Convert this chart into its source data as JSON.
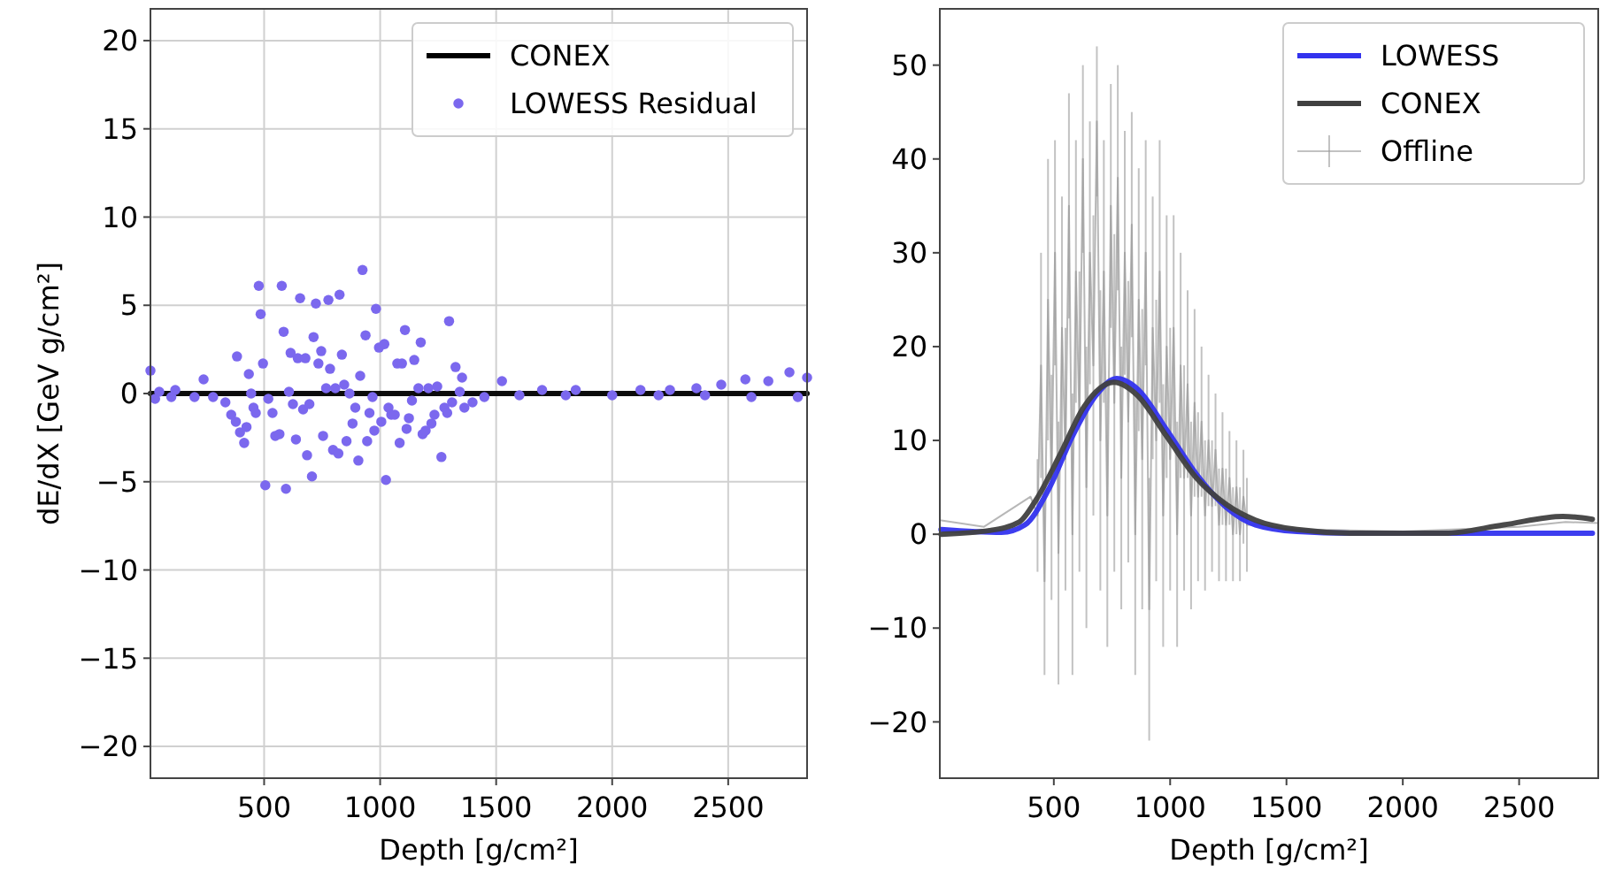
{
  "chart_data": [
    {
      "type": "line",
      "xlabel": "Depth [g/cm²]",
      "ylabel": "dE/dX [GeV g/cm²]",
      "xlim": [
        10,
        2840
      ],
      "ylim": [
        -21.8,
        21.8
      ],
      "xticks": [
        500,
        1000,
        1500,
        2000,
        2500
      ],
      "yticks": [
        -20,
        -15,
        -10,
        -5,
        0,
        5,
        10,
        15,
        20
      ],
      "grid": true,
      "legend": "top right",
      "series": [
        {
          "name": "CONEX",
          "color": "#000000",
          "x": [
            10,
            2840
          ],
          "values": [
            0,
            0
          ]
        },
        {
          "name": "LOWESS Residual",
          "type": "scatter",
          "marker": "circle",
          "color": "#7b68ee",
          "x": [
            10,
            30,
            48,
            100,
            117,
            200,
            239,
            280,
            333,
            358,
            378,
            383,
            396,
            414,
            424,
            434,
            444,
            454,
            464,
            477,
            485,
            495,
            505,
            518,
            536,
            548,
            566,
            576,
            584,
            594,
            607,
            614,
            624,
            637,
            645,
            655,
            668,
            678,
            685,
            695,
            706,
            713,
            723,
            734,
            746,
            754,
            767,
            777,
            784,
            797,
            807,
            820,
            825,
            835,
            845,
            855,
            868,
            881,
            893,
            906,
            914,
            924,
            937,
            944,
            954,
            967,
            975,
            982,
            995,
            1005,
            1018,
            1025,
            1036,
            1048,
            1063,
            1074,
            1084,
            1094,
            1107,
            1114,
            1124,
            1137,
            1147,
            1165,
            1175,
            1183,
            1196,
            1208,
            1221,
            1234,
            1246,
            1264,
            1277,
            1289,
            1297,
            1310,
            1325,
            1343,
            1353,
            1363,
            1398,
            1449,
            1525,
            1600,
            1698,
            1800,
            1843,
            2000,
            2122,
            2200,
            2249,
            2363,
            2400,
            2470,
            2574,
            2600,
            2673,
            2764,
            2800,
            2840
          ],
          "values": [
            1.3,
            -0.3,
            0.1,
            -0.2,
            0.2,
            -0.2,
            0.8,
            -0.2,
            -0.5,
            -1.2,
            -1.6,
            2.1,
            -2.2,
            -2.8,
            -1.9,
            1.1,
            0,
            -0.8,
            -1.1,
            6.1,
            4.5,
            1.7,
            -5.2,
            -0.3,
            -1.1,
            -2.4,
            -2.3,
            6.1,
            3.5,
            -5.4,
            0.1,
            2.3,
            -0.6,
            -2.6,
            2,
            5.4,
            -0.9,
            2,
            -3.5,
            -0.6,
            -4.7,
            3.2,
            5.1,
            1.7,
            2.4,
            -2.4,
            0.3,
            5.3,
            1.4,
            -3.2,
            0.3,
            -3.4,
            5.6,
            2.2,
            0.5,
            -2.7,
            0,
            -1.7,
            -0.8,
            -3.8,
            1,
            7,
            3.3,
            -2.7,
            -1.1,
            -0.2,
            -2.1,
            4.8,
            2.6,
            -1.6,
            2.8,
            -4.9,
            -0.8,
            -1.2,
            -1.2,
            1.7,
            -2.8,
            1.7,
            3.6,
            -2,
            -1.4,
            -0.4,
            1.9,
            0.3,
            2.9,
            -2.3,
            -2.1,
            0.3,
            -1.7,
            -1.2,
            0.4,
            -3.6,
            -0.8,
            -1.1,
            4.1,
            -0.5,
            1.5,
            0.1,
            0.9,
            -0.8,
            -0.5,
            -0.2,
            0.7,
            -0.1,
            0.2,
            -0.1,
            0.2,
            -0.1,
            0.2,
            -0.1,
            0.2,
            0.3,
            -0.1,
            0.5,
            0.8,
            -0.2,
            0.7,
            1.2,
            -0.2,
            0.9
          ]
        }
      ]
    },
    {
      "type": "line",
      "xlabel": "Depth [g/cm²]",
      "xlim": [
        10,
        2840
      ],
      "ylim": [
        -26,
        56
      ],
      "xticks": [
        500,
        1000,
        1500,
        2000,
        2500
      ],
      "yticks": [
        -20,
        -10,
        0,
        10,
        20,
        30,
        40,
        50
      ],
      "grid": false,
      "legend": "top right",
      "series": [
        {
          "name": "LOWESS",
          "color": "#3333ee",
          "x": [
            15,
            275,
            376,
            478,
            579,
            681,
            770,
            859,
            986,
            1113,
            1240,
            1367,
            1545,
            1799,
            2815
          ],
          "values": [
            0.5,
            0.2,
            1,
            4.8,
            10.4,
            14.8,
            16.6,
            15.5,
            11.1,
            6.4,
            2.9,
            1,
            0.3,
            0.1,
            0.1
          ]
        },
        {
          "name": "CONEX",
          "color": "#404040",
          "x": [
            15,
            224,
            351,
            427,
            529,
            630,
            757,
            859,
            986,
            1113,
            1240,
            1367,
            1545,
            1799,
            2180,
            2434,
            2688,
            2815
          ],
          "values": [
            0,
            0.4,
            1.3,
            3.8,
            8.6,
            13.6,
            16.2,
            14.8,
            10.4,
            6,
            3.2,
            1.5,
            0.5,
            0.1,
            0.1,
            1,
            1.9,
            1.6
          ]
        },
        {
          "name": "Offline",
          "color": "#999999",
          "x": [
            10,
            200,
            400,
            430,
            445,
            460,
            475,
            490,
            505,
            520,
            535,
            550,
            565,
            580,
            595,
            610,
            625,
            640,
            655,
            670,
            685,
            700,
            715,
            730,
            745,
            760,
            775,
            790,
            805,
            820,
            835,
            850,
            865,
            880,
            895,
            910,
            925,
            940,
            955,
            970,
            985,
            1000,
            1015,
            1030,
            1045,
            1060,
            1075,
            1090,
            1105,
            1120,
            1135,
            1150,
            1165,
            1180,
            1195,
            1210,
            1225,
            1240,
            1255,
            1270,
            1285,
            1300,
            1315,
            1330,
            1400,
            1600,
            2000,
            2500,
            2700,
            2840
          ],
          "values": [
            1.5,
            0.8,
            4,
            2,
            18,
            -5,
            25,
            5,
            30,
            -2,
            22,
            8,
            35,
            0,
            28,
            12,
            40,
            5,
            30,
            18,
            44,
            10,
            28,
            2,
            35,
            14,
            38,
            6,
            30,
            12,
            33,
            0,
            25,
            8,
            30,
            -8,
            22,
            10,
            28,
            2,
            20,
            8,
            22,
            0,
            18,
            6,
            16,
            2,
            14,
            4,
            12,
            2,
            10,
            3,
            9,
            1,
            7,
            1,
            6,
            0,
            5,
            0,
            4,
            1,
            1,
            0.5,
            0.3,
            0.8,
            1.3,
            1.2
          ],
          "errors": [
            null,
            null,
            null,
            6,
            12,
            10,
            15,
            12,
            12,
            14,
            14,
            14,
            12,
            15,
            14,
            16,
            10,
            15,
            14,
            16,
            8,
            16,
            14,
            14,
            13,
            18,
            12,
            14,
            13,
            15,
            12,
            15,
            14,
            16,
            12,
            14,
            14,
            15,
            14,
            14,
            14,
            14,
            12,
            12,
            12,
            12,
            10,
            10,
            10,
            9,
            8,
            8,
            7,
            7,
            6,
            6,
            6,
            6,
            5,
            5,
            5,
            5,
            5,
            5,
            null,
            null,
            null,
            null,
            null,
            null
          ]
        }
      ]
    }
  ]
}
